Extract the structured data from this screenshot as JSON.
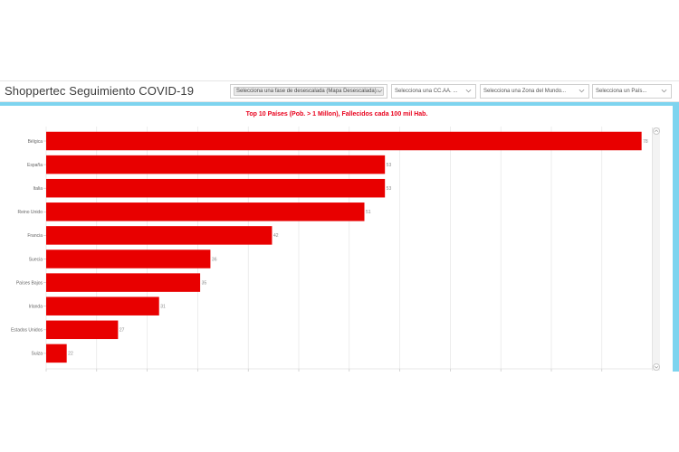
{
  "header": {
    "title": "Shoppertec Seguimiento COVID-19",
    "filters": [
      {
        "label": "Selecciona una fase de desescalada (Mapa Desescalada)..."
      },
      {
        "label": "Selecciona una CC.AA. ..."
      },
      {
        "label": "Selecciona una Zona del Mundo..."
      },
      {
        "label": "Selecciona un País..."
      }
    ]
  },
  "colors": {
    "bar": "#e80000",
    "title": "#e8001c",
    "frame": "#7ed4ef",
    "grid": "#e2e2e2"
  },
  "icons": {
    "filter_chevron": "chevron-down-icon",
    "scroll_up": "chevron-up-icon",
    "scroll_down": "chevron-down-icon"
  },
  "chart_data": {
    "type": "bar",
    "orientation": "horizontal",
    "title": "Top 10 Países (Pob. > 1 Millon), Fallecidos cada 100 mil Hab.",
    "categories": [
      "Bélgica",
      "España",
      "Italia",
      "Reino Unido",
      "Francia",
      "Suecia",
      "Países Bajos",
      "Irlanda",
      "Estados Unidos",
      "Suiza"
    ],
    "values": [
      78,
      53,
      53,
      51,
      42,
      36,
      35,
      31,
      27,
      22
    ],
    "xlabel": "",
    "ylabel": "",
    "grid": true,
    "legend": "none"
  }
}
